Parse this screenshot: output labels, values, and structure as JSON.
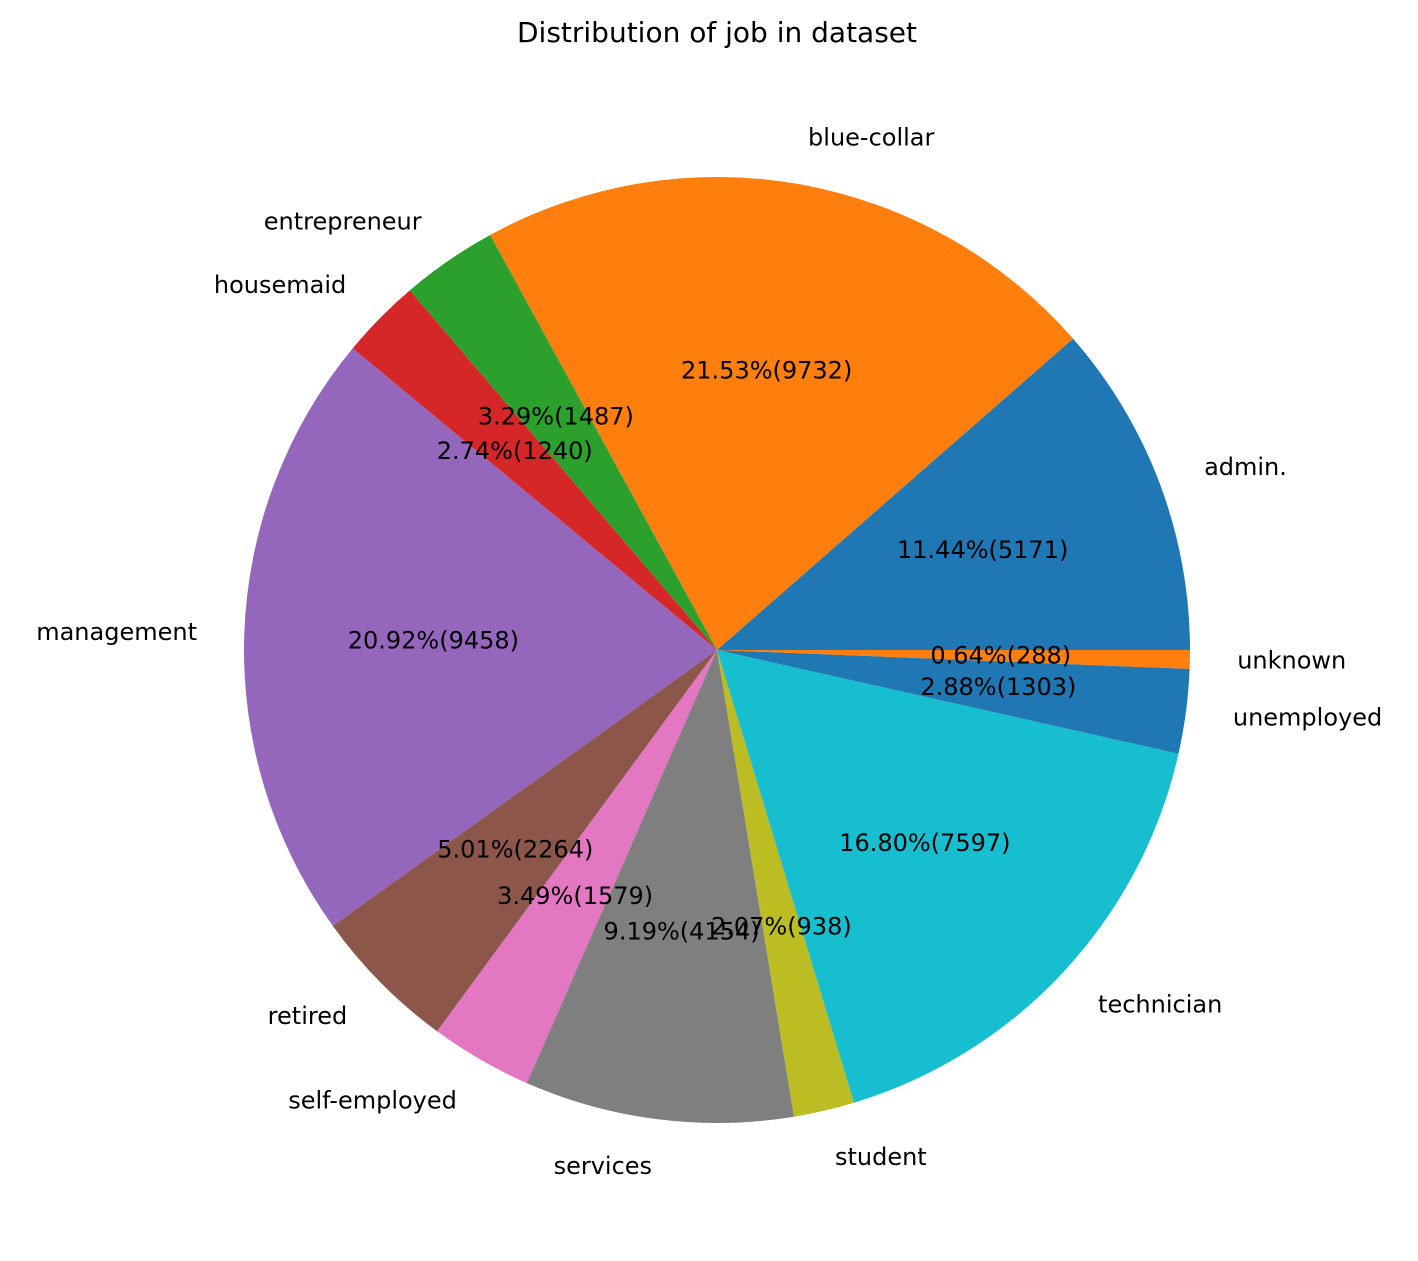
{
  "chart_data": {
    "type": "pie",
    "title": "Distribution of job in dataset",
    "slices": [
      {
        "label": "admin.",
        "value": 5171,
        "percent_text": "11.44%(5171)",
        "color": "#1f77b4"
      },
      {
        "label": "blue-collar",
        "value": 9732,
        "percent_text": "21.53%(9732)",
        "color": "#ff7f0e"
      },
      {
        "label": "entrepreneur",
        "value": 1487,
        "percent_text": "3.29%(1487)",
        "color": "#2ca02c"
      },
      {
        "label": "housemaid",
        "value": 1240,
        "percent_text": "2.74%(1240)",
        "color": "#d62728"
      },
      {
        "label": "management",
        "value": 9458,
        "percent_text": "20.92%(9458)",
        "color": "#9467bd"
      },
      {
        "label": "retired",
        "value": 2264,
        "percent_text": "5.01%(2264)",
        "color": "#8c564b"
      },
      {
        "label": "self-employed",
        "value": 1579,
        "percent_text": "3.49%(1579)",
        "color": "#e377c2"
      },
      {
        "label": "services",
        "value": 4154,
        "percent_text": "9.19%(4154)",
        "color": "#7f7f7f"
      },
      {
        "label": "student",
        "value": 938,
        "percent_text": "2.07%(938)",
        "color": "#bcbd22"
      },
      {
        "label": "technician",
        "value": 7597,
        "percent_text": "16.80%(7597)",
        "color": "#17becf"
      },
      {
        "label": "unemployed",
        "value": 1303,
        "percent_text": "2.88%(1303)",
        "color": "#1f77b4"
      },
      {
        "label": "unknown",
        "value": 288,
        "percent_text": "0.64%(288)",
        "color": "#ff7f0e"
      }
    ],
    "start_angle_deg": 0,
    "direction": "counterclockwise",
    "legend": "none"
  }
}
